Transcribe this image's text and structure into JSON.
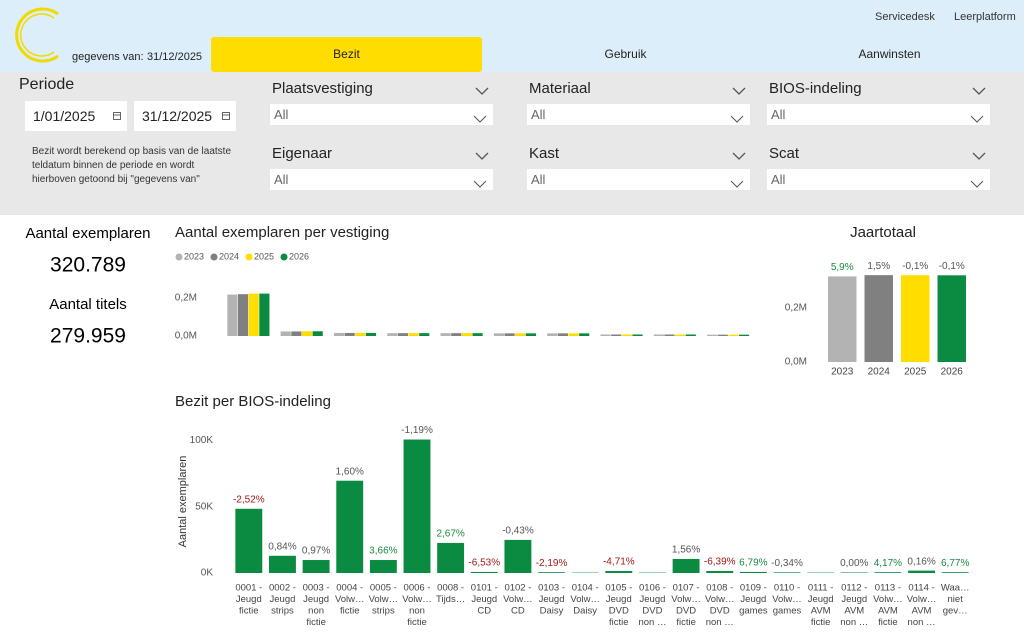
{
  "header": {
    "data_date_label": "gegevens van:",
    "data_date": "31/12/2025",
    "links": [
      "Servicedesk",
      "Leerplatform"
    ],
    "tabs": [
      "Bezit",
      "Gebruik",
      "Aanwinsten"
    ]
  },
  "filters": {
    "period_label": "Periode",
    "start_date": "1/01/2025",
    "end_date": "31/12/2025",
    "note": "Bezit wordt berekend op basis van de laatste teldatum binnen de periode en wordt hierboven getoond bij \"gegevens van\"",
    "slicers": [
      {
        "label": "Plaatsvestiging",
        "value": "All"
      },
      {
        "label": "Materiaal",
        "value": "All"
      },
      {
        "label": "BIOS-indeling",
        "value": "All"
      },
      {
        "label": "Eigenaar",
        "value": "All"
      },
      {
        "label": "Kast",
        "value": "All"
      },
      {
        "label": "Scat",
        "value": "All"
      }
    ]
  },
  "kpis": [
    {
      "label": "Aantal exemplaren",
      "value": "320.789"
    },
    {
      "label": "Aantal titels",
      "value": "279.959"
    }
  ],
  "chart_data": [
    {
      "type": "bar",
      "title": "Aantal exemplaren per vestiging",
      "categories": [
        null,
        null,
        null,
        null,
        null,
        null,
        null,
        null,
        null,
        null
      ],
      "series": [
        {
          "name": "2023",
          "color": "#b3b3b3",
          "values": [
            218000,
            24000,
            16000,
            15000,
            15000,
            14000,
            14000,
            8000,
            8000,
            7000
          ]
        },
        {
          "name": "2024",
          "color": "#808080",
          "values": [
            220000,
            24000,
            16000,
            15000,
            15000,
            14000,
            14000,
            8000,
            8000,
            7000
          ]
        },
        {
          "name": "2025",
          "color": "#ffdd00",
          "values": [
            223000,
            25000,
            16000,
            15000,
            15000,
            14000,
            14000,
            8000,
            8000,
            7000
          ]
        },
        {
          "name": "2026",
          "color": "#0b8a42",
          "values": [
            223000,
            25000,
            16000,
            15000,
            15000,
            14000,
            14000,
            8000,
            8000,
            7000
          ]
        }
      ],
      "ylim": [
        0,
        242000
      ],
      "yticks": [
        {
          "value": 0,
          "label": "0,0M"
        },
        {
          "value": 200000,
          "label": "0,2M"
        }
      ],
      "legend": "top-left"
    },
    {
      "type": "bar",
      "title": "Jaartotaal",
      "categories": [
        "2023",
        "2024",
        "2025",
        "2026"
      ],
      "values": [
        316700,
        321400,
        321100,
        320789
      ],
      "colors": [
        "#b3b3b3",
        "#808080",
        "#ffdd00",
        "#0b8a42"
      ],
      "change_labels": [
        "5,9%",
        "1,5%",
        "-0,1%",
        "-0,1%"
      ],
      "change_colors": [
        "#1a8a40",
        "#555555",
        "#555555",
        "#555555"
      ],
      "ylim": [
        0,
        370000
      ],
      "yticks": [
        {
          "value": 0,
          "label": "0,0M"
        },
        {
          "value": 200000,
          "label": "0,2M"
        }
      ]
    },
    {
      "type": "bar",
      "title": "Bezit per BIOS-indeling",
      "y_label": "Aantal exemplaren",
      "categories": [
        [
          "0001 -",
          "Jeugd",
          "fictie"
        ],
        [
          "0002 -",
          "Jeugd",
          "strips"
        ],
        [
          "0003 -",
          "Jeugd",
          "non",
          "fictie"
        ],
        [
          "0004 -",
          "Volw…",
          "fictie"
        ],
        [
          "0005 -",
          "Volw…",
          "strips"
        ],
        [
          "0006 -",
          "Volw…",
          "non",
          "fictie"
        ],
        [
          "0008 -",
          "Tijds…"
        ],
        [
          "0101 -",
          "Jeugd",
          "CD"
        ],
        [
          "0102 -",
          "Volw…",
          "CD"
        ],
        [
          "0103 -",
          "Jeugd",
          "Daisy"
        ],
        [
          "0104 -",
          "Volw…",
          "Daisy"
        ],
        [
          "0105 -",
          "Jeugd",
          "DVD",
          "fictie"
        ],
        [
          "0106 -",
          "Jeugd",
          "DVD",
          "non …"
        ],
        [
          "0107 -",
          "Volw…",
          "DVD",
          "fictie"
        ],
        [
          "0108 -",
          "Volw…",
          "DVD",
          "non …"
        ],
        [
          "0109 -",
          "Jeugd",
          "games"
        ],
        [
          "0110 -",
          "Volw…",
          "games"
        ],
        [
          "0111 -",
          "Jeugd",
          "AVM",
          "fictie"
        ],
        [
          "0112 -",
          "Jeugd",
          "AVM",
          "non …"
        ],
        [
          "0113 -",
          "Volw…",
          "AVM",
          "fictie"
        ],
        [
          "0114 -",
          "Volw…",
          "AVM",
          "non …"
        ],
        [
          "Waa…",
          "niet",
          "gev…"
        ]
      ],
      "values": [
        48500,
        13000,
        9800,
        69700,
        9800,
        100800,
        22700,
        800,
        25000,
        600,
        300,
        1500,
        300,
        10600,
        1500,
        800,
        500,
        300,
        400,
        600,
        1800,
        600
      ],
      "color": "#0b8a42",
      "change_labels": [
        "-2,52%",
        "0,84%",
        "0,97%",
        "1,60%",
        "3,66%",
        "-1,19%",
        "2,67%",
        "-6,53%",
        "-0,43%",
        "-2,19%",
        null,
        "-4,71%",
        null,
        "1,56%",
        "-6,39%",
        "6,79%",
        "-0,34%",
        null,
        "0,00%",
        "4,17%",
        "0,16%",
        "6,77%"
      ],
      "change_colors": [
        "#a01818",
        "#555555",
        "#555555",
        "#555555",
        "#1a8a40",
        "#555555",
        "#1a8a40",
        "#a01818",
        "#555555",
        "#a01818",
        null,
        "#a01818",
        null,
        "#555555",
        "#a01818",
        "#1a8a40",
        "#555555",
        null,
        "#555555",
        "#1a8a40",
        "#555555",
        "#1a8a40"
      ],
      "ylim": [
        0,
        108000
      ],
      "yticks": [
        {
          "value": 0,
          "label": "0K"
        },
        {
          "value": 50000,
          "label": "50K"
        },
        {
          "value": 100000,
          "label": "100K"
        }
      ]
    }
  ]
}
